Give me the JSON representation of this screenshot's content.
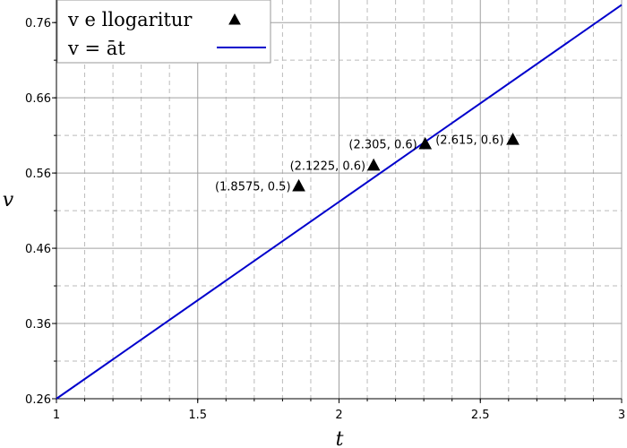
{
  "chart_data": {
    "type": "scatter",
    "xlabel": "t",
    "ylabel": "v",
    "xlim": [
      1,
      3
    ],
    "ylim": [
      0.26,
      0.79
    ],
    "grid": true,
    "legend_position": "top-left",
    "x_ticks": [
      {
        "value": 1,
        "label": "1"
      },
      {
        "value": 1.5,
        "label": "1.5"
      },
      {
        "value": 2,
        "label": "2"
      },
      {
        "value": 2.5,
        "label": "2.5"
      },
      {
        "value": 3,
        "label": "3"
      }
    ],
    "y_ticks": [
      {
        "value": 0.26,
        "label": "0.26"
      },
      {
        "value": 0.36,
        "label": "0.36"
      },
      {
        "value": 0.46,
        "label": "0.46"
      },
      {
        "value": 0.56,
        "label": "0.56"
      },
      {
        "value": 0.66,
        "label": "0.66"
      },
      {
        "value": 0.76,
        "label": "0.76"
      }
    ],
    "series": [
      {
        "name": "v e llogaritur",
        "kind": "scatter",
        "marker": "triangle",
        "color": "#000000",
        "points": [
          {
            "x": 1.8575,
            "y": 0.5429,
            "label": "(1.8575, 0.5)"
          },
          {
            "x": 2.1225,
            "y": 0.5705,
            "label": "(2.1225, 0.6)"
          },
          {
            "x": 2.305,
            "y": 0.5988,
            "label": "(2.305, 0.6)"
          },
          {
            "x": 2.615,
            "y": 0.6047,
            "label": "(2.615, 0.6)"
          }
        ]
      },
      {
        "name": "v = āt",
        "kind": "line",
        "color": "#0000cc",
        "x": [
          1,
          3
        ],
        "y": [
          0.26,
          0.7835
        ]
      }
    ]
  }
}
